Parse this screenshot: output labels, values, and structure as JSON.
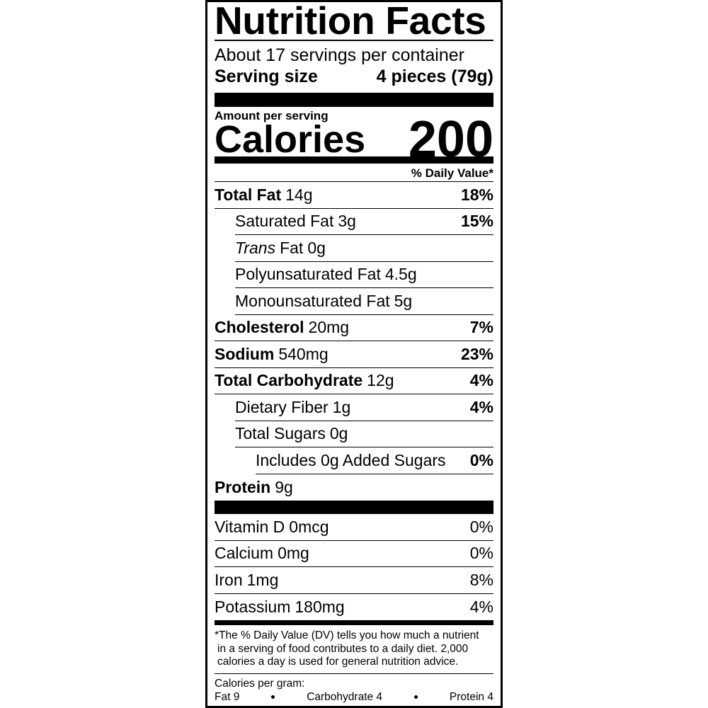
{
  "title": "Nutrition Facts",
  "servings": "About 17 servings per container",
  "serving_size": {
    "label": "Serving size",
    "value": "4 pieces (79g)"
  },
  "amount_per_serving": "Amount per serving",
  "calories": {
    "label": "Calories",
    "value": "200"
  },
  "dv_header": "% Daily Value*",
  "nutrients": [
    {
      "name": "Total Fat",
      "amount": "14g",
      "dv": "18%",
      "sub": [
        {
          "name": "Saturated Fat",
          "amount": "3g",
          "dv": "15%"
        },
        {
          "prefix": "Trans",
          "name": "Fat",
          "amount": "0g"
        },
        {
          "name": "Polyunsaturated Fat",
          "amount": "4.5g"
        },
        {
          "name": "Monounsaturated Fat",
          "amount": "5g"
        }
      ]
    },
    {
      "name": "Cholesterol",
      "amount": "20mg",
      "dv": "7%"
    },
    {
      "name": "Sodium",
      "amount": "540mg",
      "dv": "23%"
    },
    {
      "name": "Total Carbohydrate",
      "amount": "12g",
      "dv": "4%",
      "sub": [
        {
          "name": "Dietary Fiber",
          "amount": "1g",
          "dv": "4%"
        },
        {
          "name": "Total Sugars",
          "amount": "0g",
          "sub": [
            {
              "name": "Includes 0g Added Sugars",
              "dv": "0%"
            }
          ]
        }
      ]
    },
    {
      "name": "Protein",
      "amount": "9g"
    }
  ],
  "vitamins": [
    {
      "name": "Vitamin D",
      "amount": "0mcg",
      "dv": "0%"
    },
    {
      "name": "Calcium",
      "amount": "0mg",
      "dv": "0%"
    },
    {
      "name": "Iron",
      "amount": "1mg",
      "dv": "8%"
    },
    {
      "name": "Potassium",
      "amount": "180mg",
      "dv": "4%"
    }
  ],
  "footnote": [
    "*The % Daily Value (DV) tells you how much a nutrient",
    "in a serving of food contributes to a daily diet. 2,000",
    "calories a day is used for general nutrition advice."
  ],
  "calories_per_gram": {
    "label": "Calories per gram:",
    "items": [
      "Fat 9",
      "Carbohydrate 4",
      "Protein 4"
    ]
  }
}
